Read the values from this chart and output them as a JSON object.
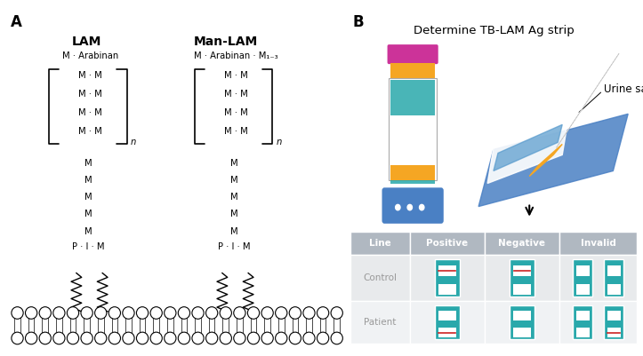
{
  "bg_color": "#ffffff",
  "panel_A_label": "A",
  "panel_B_label": "B",
  "lam_title": "LAM",
  "manlam_title": "Man-LAM",
  "strip_title": "Determine TB-LAM Ag strip",
  "urine_label": "Urine sample",
  "table_headers": [
    "Line",
    "Positive",
    "Negative",
    "Invalid"
  ],
  "table_rows": [
    "Control",
    "Patient"
  ],
  "teal_color": "#29a8ab",
  "magenta_color": "#cc3399",
  "orange_color": "#f5a623",
  "blue_color": "#4a80c4",
  "header_gray": "#b0b8c1",
  "row_gray": "#e8eaec",
  "red_line_color": "#cc2222",
  "text_gray": "#999999"
}
